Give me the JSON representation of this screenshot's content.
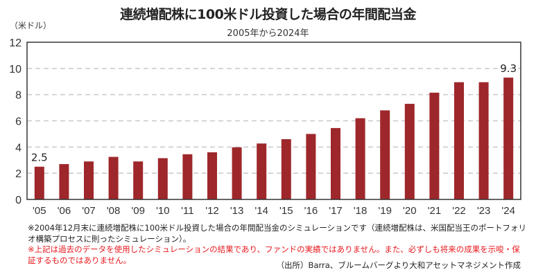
{
  "chart_data": {
    "type": "bar",
    "title": "連続増配株に100米ドル投資した場合の年間配当金",
    "subtitle": "2005年から2024年",
    "ylabel": "（米ドル）",
    "xlabel": "",
    "ylim": [
      0,
      12
    ],
    "yticks": [
      0,
      2,
      4,
      6,
      8,
      10,
      12
    ],
    "grid": true,
    "legend": "none",
    "categories": [
      "'05",
      "'06",
      "'07",
      "'08",
      "'09",
      "'10",
      "'11",
      "'12",
      "'13",
      "'14",
      "'15",
      "'16",
      "'17",
      "'18",
      "'19",
      "'20",
      "'21",
      "'22",
      "'23",
      "'24"
    ],
    "values": [
      2.5,
      2.7,
      2.9,
      3.25,
      2.9,
      3.15,
      3.45,
      3.6,
      3.98,
      4.27,
      4.6,
      5.0,
      5.45,
      6.2,
      6.8,
      7.3,
      8.15,
      8.95,
      8.95,
      9.3
    ],
    "annotations": [
      {
        "category": "'05",
        "label": "2.5"
      },
      {
        "category": "'24",
        "label": "9.3"
      }
    ],
    "bar_color": "#9e272b"
  },
  "notes": {
    "line1": "※2004年12月末に連続増配株に100米ドル投資した場合の年間配当金のシミュレーションです（連続増配株は、米国配当王のポートフォリオ構築プロセスに則ったシミュレーション）。",
    "line2": "※上記は過去のデータを使用したシミュレーションの結果であり、ファンドの実績ではありません。また、必ずしも将来の成果を示唆・保証するものではありません。",
    "source": "（出所）Barra、ブルームバーグより大和アセットマネジメント作成"
  }
}
